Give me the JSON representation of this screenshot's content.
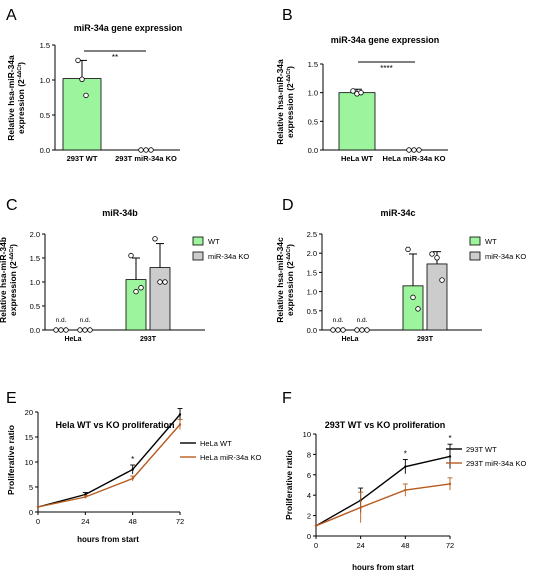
{
  "chart_data": [
    {
      "panel": "A",
      "type": "bar",
      "title": "miR-34a gene expression",
      "ylabel_line1": "Relative hsa-miR-34a",
      "ylabel_line2": "expression (2",
      "ylabel_sup": "-∆∆Ct",
      "ylabel_close": ")",
      "ylim": [
        0,
        1.5
      ],
      "yticks": [
        "0.0",
        "0.5",
        "1.0",
        "1.5"
      ],
      "categories": [
        "293T WT",
        "293T miR-34a KO"
      ],
      "values": [
        1.02,
        0.0
      ],
      "errors": [
        0.26,
        0.0
      ],
      "points": [
        [
          1.28,
          1.01,
          0.78
        ],
        [
          0.0,
          0.0,
          0.0
        ]
      ],
      "colors": [
        "#9cf59c",
        "#cccccc"
      ],
      "significance": "**"
    },
    {
      "panel": "B",
      "type": "bar",
      "title": "miR-34a gene expression",
      "ylabel_line1": "Relative hsa-miR-34a",
      "ylabel_line2": "expression (2",
      "ylabel_sup": "-∆∆Ct",
      "ylabel_close": ")",
      "ylim": [
        0,
        1.5
      ],
      "yticks": [
        "0.0",
        "0.5",
        "1.0",
        "1.5"
      ],
      "categories": [
        "HeLa WT",
        "HeLa miR-34a KO"
      ],
      "values": [
        1.0,
        0.0
      ],
      "errors": [
        0.06,
        0.0
      ],
      "points": [
        [
          1.03,
          0.98,
          1.0
        ],
        [
          0.0,
          0.0,
          0.0
        ]
      ],
      "colors": [
        "#9cf59c",
        "#cccccc"
      ],
      "significance": "****"
    },
    {
      "panel": "C",
      "type": "bar",
      "title": "miR-34b",
      "ylabel_line1": "Relative  hsa-miR-34b",
      "ylabel_line2": "expression (2",
      "ylabel_sup": "-∆∆Ct",
      "ylabel_close": ")",
      "ylim": [
        0,
        2.0
      ],
      "yticks": [
        "0.0",
        "0.5",
        "1.0",
        "1.5",
        "2.0"
      ],
      "groups": [
        "HeLa",
        "293T"
      ],
      "series": [
        {
          "name": "WT",
          "values": [
            0.0,
            1.05
          ],
          "errors": [
            0.0,
            0.45
          ],
          "points": [
            [
              0.0,
              0.0,
              0.0
            ],
            [
              1.55,
              0.8,
              0.88
            ]
          ]
        },
        {
          "name": "miR-34a KO",
          "values": [
            0.0,
            1.3
          ],
          "errors": [
            0.0,
            0.5
          ],
          "points": [
            [
              0.0,
              0.0,
              0.0
            ],
            [
              1.9,
              1.0,
              1.0
            ]
          ]
        }
      ],
      "nd_label": "n.d.",
      "colors": [
        "#9cf59c",
        "#cccccc"
      ]
    },
    {
      "panel": "D",
      "type": "bar",
      "title": "miR-34c",
      "ylabel_line1": "Relative hsa-miR-34c",
      "ylabel_line2": "expression (2",
      "ylabel_sup": "-∆∆Ct",
      "ylabel_close": ")",
      "ylim": [
        0,
        2.5
      ],
      "yticks": [
        "0.0",
        "0.5",
        "1.0",
        "1.5",
        "2.0",
        "2.5"
      ],
      "groups": [
        "HeLa",
        "293T"
      ],
      "series": [
        {
          "name": "WT",
          "values": [
            0.0,
            1.15
          ],
          "errors": [
            0.0,
            0.83
          ],
          "points": [
            [
              0.0,
              0.0,
              0.0
            ],
            [
              2.1,
              0.85,
              0.55
            ]
          ]
        },
        {
          "name": "miR-34a KO",
          "values": [
            0.0,
            1.72
          ],
          "errors": [
            0.0,
            0.32
          ],
          "points": [
            [
              0.0,
              0.0,
              0.0
            ],
            [
              1.98,
              1.88,
              1.3
            ]
          ]
        }
      ],
      "nd_label": "n.d.",
      "colors": [
        "#9cf59c",
        "#cccccc"
      ]
    },
    {
      "panel": "E",
      "type": "line",
      "title": "Hela WT vs  KO proliferation",
      "xlabel": "hours from start",
      "ylabel": "Proliferative ratio",
      "xlim": [
        0,
        72
      ],
      "ylim": [
        0,
        20
      ],
      "x": [
        0,
        24,
        48,
        72
      ],
      "xticks": [
        "0",
        "24",
        "48",
        "72"
      ],
      "yticks": [
        "0",
        "5",
        "10",
        "15",
        "20"
      ],
      "series": [
        {
          "name": "HeLa WT",
          "color": "#000000",
          "values": [
            1.0,
            3.5,
            8.5,
            19.5
          ],
          "errors": [
            0.0,
            0.4,
            0.9,
            1.2
          ]
        },
        {
          "name": "HeLa miR-34a KO",
          "color": "#b85c20",
          "values": [
            1.0,
            3.0,
            6.7,
            17.5
          ],
          "errors": [
            0.0,
            0.3,
            0.5,
            1.0
          ]
        }
      ],
      "annotations": [
        {
          "text": "*",
          "x": 48
        }
      ],
      "legend": "top-right"
    },
    {
      "panel": "F",
      "type": "line",
      "title": "293T WT vs  KO proliferation",
      "xlabel": "hours from start",
      "ylabel": "Proliferative ratio",
      "xlim": [
        0,
        72
      ],
      "ylim": [
        0,
        10
      ],
      "x": [
        0,
        24,
        48,
        72
      ],
      "xticks": [
        "0",
        "24",
        "48",
        "72"
      ],
      "yticks": [
        "0",
        "2",
        "4",
        "6",
        "8",
        "10"
      ],
      "series": [
        {
          "name": "293T  WT",
          "color": "#000000",
          "values": [
            1.0,
            3.5,
            6.8,
            7.8
          ],
          "errors": [
            0.0,
            1.2,
            0.7,
            1.2
          ]
        },
        {
          "name": "293T miR-34a KO",
          "color": "#b85c20",
          "values": [
            1.0,
            2.8,
            4.5,
            5.1
          ],
          "errors": [
            0.0,
            1.5,
            0.6,
            0.6
          ]
        }
      ],
      "annotations": [
        {
          "text": "*",
          "x": 48
        },
        {
          "text": "*",
          "x": 72
        }
      ],
      "legend": "top-right"
    }
  ]
}
